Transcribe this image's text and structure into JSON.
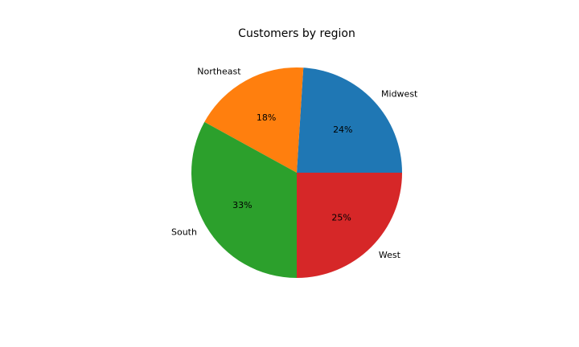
{
  "chart_data": {
    "type": "pie",
    "title": "Customers by region",
    "slices": [
      {
        "label": "Midwest",
        "value": 24,
        "pct_label": "24%",
        "color": "#1f77b4"
      },
      {
        "label": "Northeast",
        "value": 18,
        "pct_label": "18%",
        "color": "#ff7f0e"
      },
      {
        "label": "South",
        "value": 33,
        "pct_label": "33%",
        "color": "#2ca02c"
      },
      {
        "label": "West",
        "value": 25,
        "pct_label": "25%",
        "color": "#d62728"
      }
    ],
    "start_angle_deg": 0,
    "direction": "counterclockwise"
  }
}
